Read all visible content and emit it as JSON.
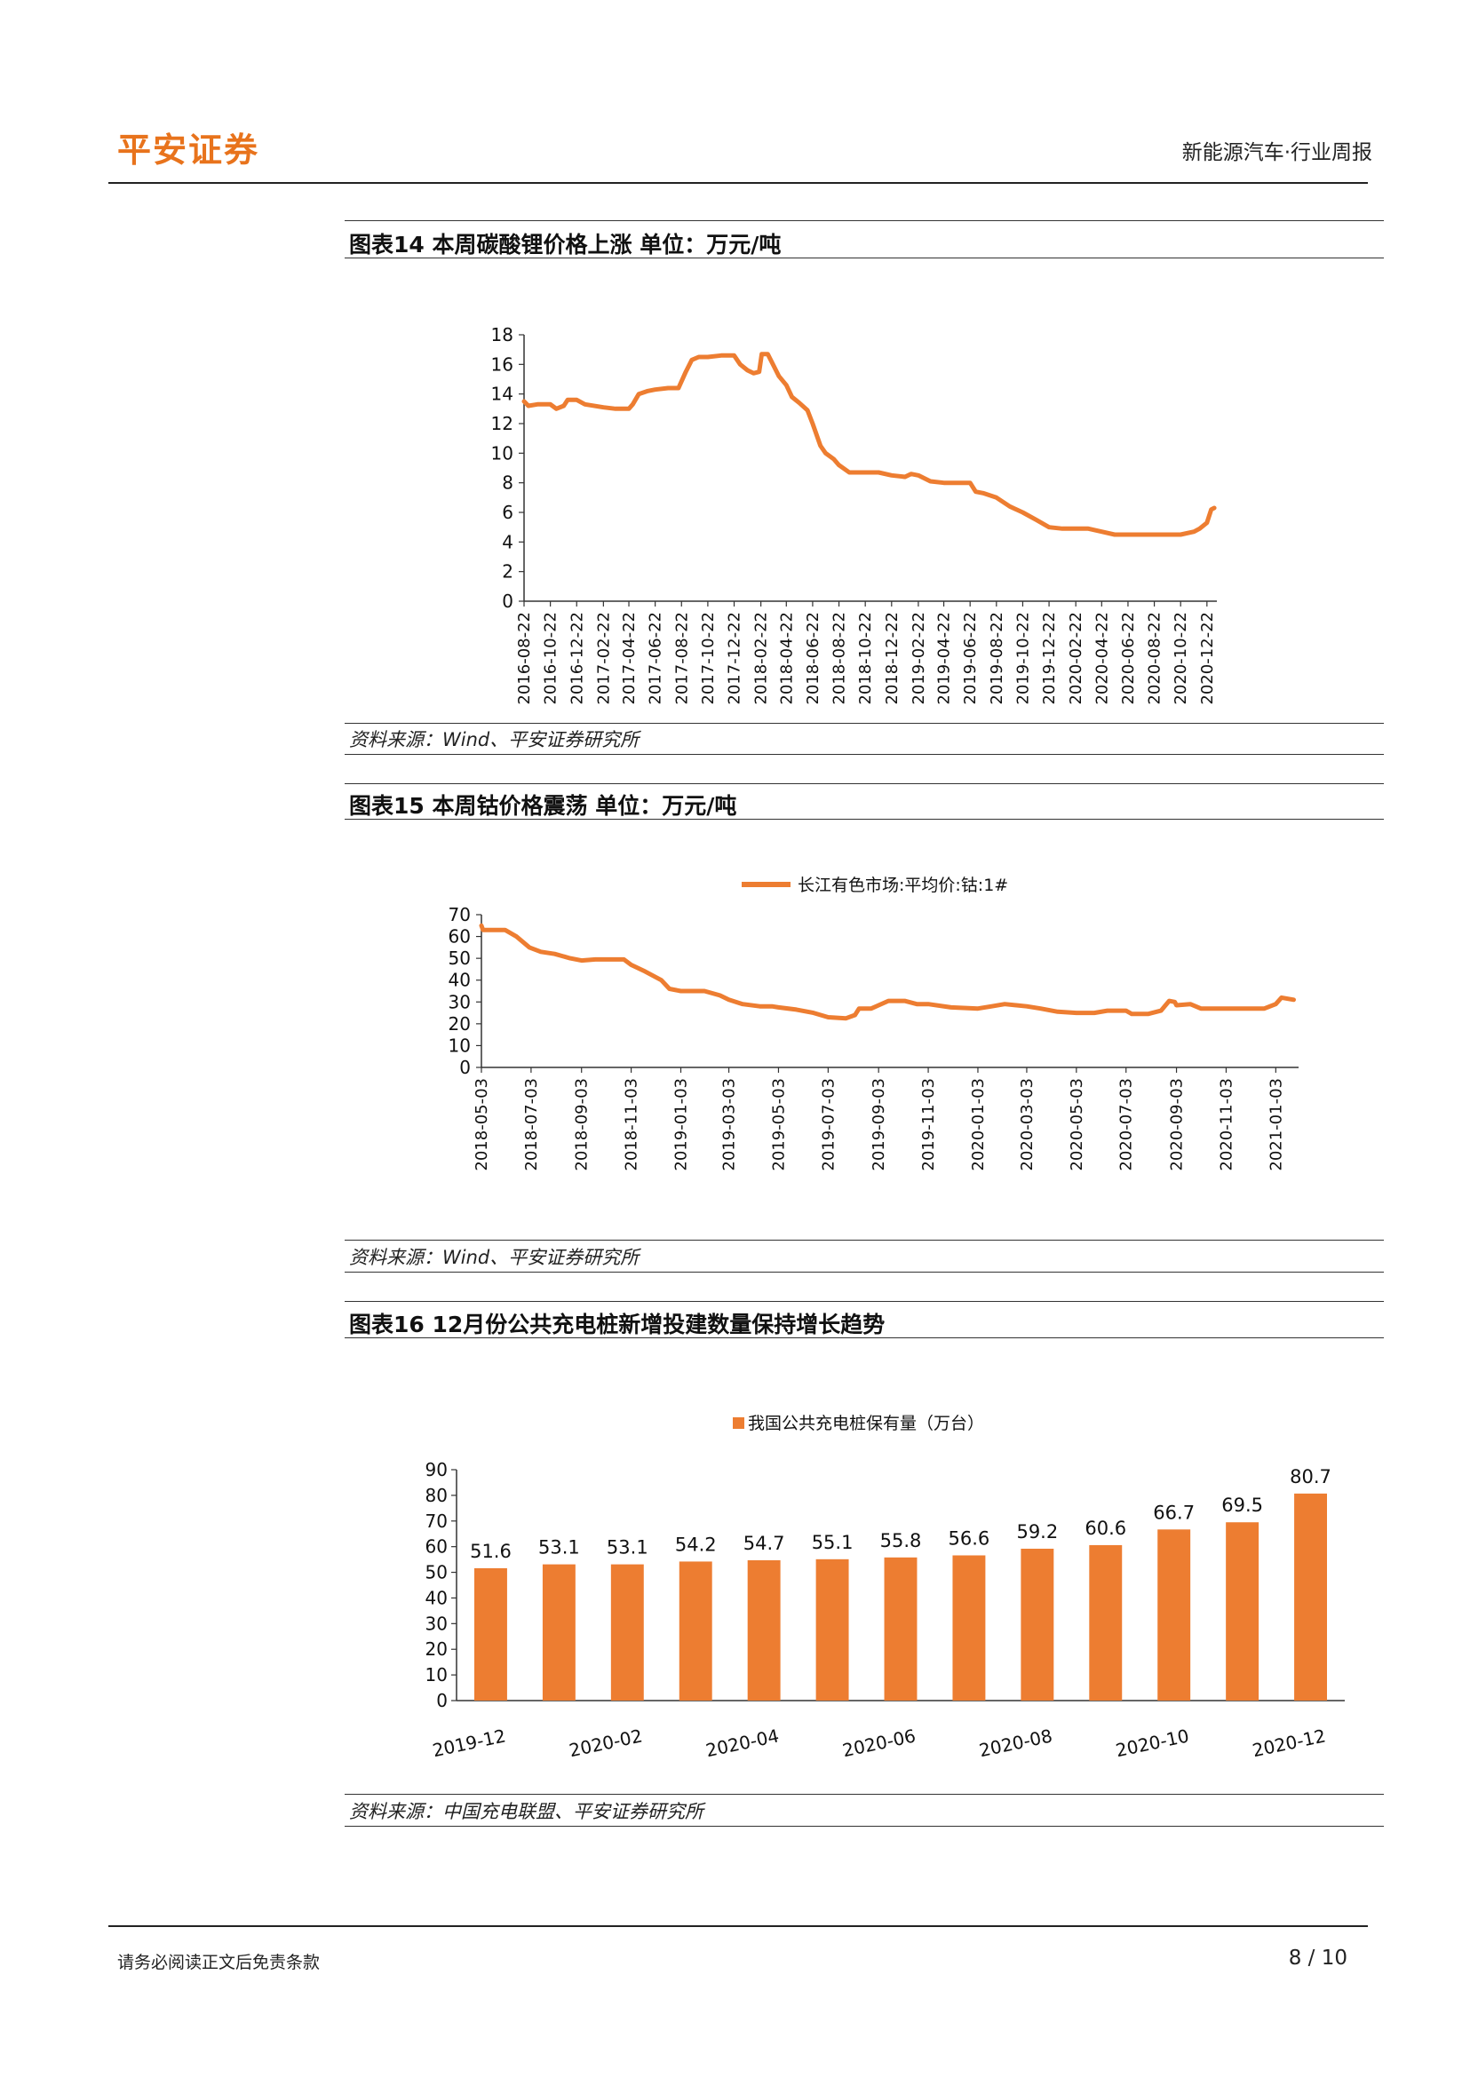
{
  "header": {
    "logo_text": "平安证券",
    "report_title": "新能源汽车·行业周报"
  },
  "figures": [
    {
      "title": "图表14   本周碳酸锂价格上涨   单位：万元/吨",
      "source": "资料来源：Wind、平安证券研究所"
    },
    {
      "title": "图表15   本周钴价格震荡   单位：万元/吨",
      "source": "资料来源：Wind、平安证券研究所"
    },
    {
      "title": "图表16   12月份公共充电桩新增投建数量保持增长趋势",
      "source": "资料来源：中国充电联盟、平安证券研究所"
    }
  ],
  "footer": {
    "disclaimer": "请务必阅读正文后免责条款",
    "page": "8 / 10"
  },
  "colors": {
    "accent": "#ed7d31",
    "logo": "#e8731c"
  },
  "chart_data": [
    {
      "type": "line",
      "title": "",
      "ylim": [
        0,
        18
      ],
      "yticks": [
        0,
        2,
        4,
        6,
        8,
        10,
        12,
        14,
        16,
        18
      ],
      "xtick_labels": [
        "2016-08-22",
        "2016-10-22",
        "2016-12-22",
        "2017-02-22",
        "2017-04-22",
        "2017-06-22",
        "2017-08-22",
        "2017-10-22",
        "2017-12-22",
        "2018-02-22",
        "2018-04-22",
        "2018-06-22",
        "2018-08-22",
        "2018-10-22",
        "2018-12-22",
        "2019-02-22",
        "2019-04-22",
        "2019-06-22",
        "2019-08-22",
        "2019-10-22",
        "2019-12-22",
        "2020-02-22",
        "2020-04-22",
        "2020-06-22",
        "2020-08-22",
        "2020-10-22",
        "2020-12-22"
      ],
      "legend": null,
      "series": [
        {
          "name": "",
          "points": [
            [
              "2016-08-22",
              13.5
            ],
            [
              "2016-09-01",
              13.2
            ],
            [
              "2016-09-22",
              13.3
            ],
            [
              "2016-10-22",
              13.3
            ],
            [
              "2016-11-05",
              13.0
            ],
            [
              "2016-11-22",
              13.2
            ],
            [
              "2016-12-01",
              13.6
            ],
            [
              "2016-12-22",
              13.6
            ],
            [
              "2017-01-10",
              13.3
            ],
            [
              "2017-02-22",
              13.1
            ],
            [
              "2017-03-22",
              13.0
            ],
            [
              "2017-04-22",
              13.0
            ],
            [
              "2017-05-01",
              13.3
            ],
            [
              "2017-05-15",
              14.0
            ],
            [
              "2017-06-05",
              14.2
            ],
            [
              "2017-06-22",
              14.3
            ],
            [
              "2017-07-22",
              14.4
            ],
            [
              "2017-08-15",
              14.4
            ],
            [
              "2017-09-01",
              15.5
            ],
            [
              "2017-09-15",
              16.3
            ],
            [
              "2017-10-01",
              16.5
            ],
            [
              "2017-10-22",
              16.5
            ],
            [
              "2017-11-22",
              16.6
            ],
            [
              "2017-12-22",
              16.6
            ],
            [
              "2018-01-05",
              16.0
            ],
            [
              "2018-01-22",
              15.6
            ],
            [
              "2018-02-05",
              15.4
            ],
            [
              "2018-02-18",
              15.5
            ],
            [
              "2018-02-24",
              16.7
            ],
            [
              "2018-03-10",
              16.7
            ],
            [
              "2018-03-22",
              16.0
            ],
            [
              "2018-04-05",
              15.2
            ],
            [
              "2018-04-22",
              14.6
            ],
            [
              "2018-05-05",
              13.8
            ],
            [
              "2018-05-22",
              13.4
            ],
            [
              "2018-06-10",
              12.9
            ],
            [
              "2018-06-22",
              12.0
            ],
            [
              "2018-07-10",
              10.5
            ],
            [
              "2018-07-22",
              10.0
            ],
            [
              "2018-08-10",
              9.6
            ],
            [
              "2018-08-22",
              9.2
            ],
            [
              "2018-09-15",
              8.7
            ],
            [
              "2018-10-22",
              8.7
            ],
            [
              "2018-11-22",
              8.7
            ],
            [
              "2018-12-22",
              8.5
            ],
            [
              "2019-01-22",
              8.4
            ],
            [
              "2019-02-05",
              8.6
            ],
            [
              "2019-02-22",
              8.5
            ],
            [
              "2019-03-22",
              8.1
            ],
            [
              "2019-04-22",
              8.0
            ],
            [
              "2019-05-22",
              8.0
            ],
            [
              "2019-06-22",
              8.0
            ],
            [
              "2019-07-05",
              7.4
            ],
            [
              "2019-07-22",
              7.3
            ],
            [
              "2019-08-22",
              7.0
            ],
            [
              "2019-09-22",
              6.4
            ],
            [
              "2019-10-22",
              6.0
            ],
            [
              "2019-11-22",
              5.5
            ],
            [
              "2019-12-22",
              5.0
            ],
            [
              "2020-01-22",
              4.9
            ],
            [
              "2020-02-22",
              4.9
            ],
            [
              "2020-03-22",
              4.9
            ],
            [
              "2020-04-22",
              4.7
            ],
            [
              "2020-05-22",
              4.5
            ],
            [
              "2020-06-22",
              4.5
            ],
            [
              "2020-07-22",
              4.5
            ],
            [
              "2020-08-22",
              4.5
            ],
            [
              "2020-09-22",
              4.5
            ],
            [
              "2020-10-22",
              4.5
            ],
            [
              "2020-11-22",
              4.7
            ],
            [
              "2020-12-05",
              4.9
            ],
            [
              "2020-12-22",
              5.3
            ],
            [
              "2021-01-01",
              6.2
            ],
            [
              "2021-01-08",
              6.3
            ]
          ]
        }
      ]
    },
    {
      "type": "line",
      "title": "",
      "ylim": [
        0,
        70
      ],
      "yticks": [
        0,
        10,
        20,
        30,
        40,
        50,
        60,
        70
      ],
      "xtick_labels": [
        "2018-05-03",
        "2018-07-03",
        "2018-09-03",
        "2018-11-03",
        "2019-01-03",
        "2019-03-03",
        "2019-05-03",
        "2019-07-03",
        "2019-09-03",
        "2019-11-03",
        "2020-01-03",
        "2020-03-03",
        "2020-05-03",
        "2020-07-03",
        "2020-09-03",
        "2020-11-03",
        "2021-01-03"
      ],
      "legend": "top",
      "series": [
        {
          "name": "长江有色市场:平均价:钴:1#",
          "points": [
            [
              "2018-05-03",
              65.0
            ],
            [
              "2018-05-05",
              63.0
            ],
            [
              "2018-06-01",
              63.0
            ],
            [
              "2018-06-15",
              60.0
            ],
            [
              "2018-07-01",
              55.0
            ],
            [
              "2018-07-15",
              53.0
            ],
            [
              "2018-08-01",
              52.0
            ],
            [
              "2018-08-20",
              50.0
            ],
            [
              "2018-09-03",
              49.0
            ],
            [
              "2018-09-20",
              49.5
            ],
            [
              "2018-10-10",
              49.5
            ],
            [
              "2018-10-25",
              49.5
            ],
            [
              "2018-11-03",
              47.0
            ],
            [
              "2018-11-20",
              44.0
            ],
            [
              "2018-12-10",
              40.0
            ],
            [
              "2018-12-20",
              36.0
            ],
            [
              "2019-01-03",
              35.0
            ],
            [
              "2019-02-01",
              35.0
            ],
            [
              "2019-02-20",
              33.0
            ],
            [
              "2019-03-03",
              31.0
            ],
            [
              "2019-03-20",
              29.0
            ],
            [
              "2019-04-10",
              28.0
            ],
            [
              "2019-04-25",
              28.0
            ],
            [
              "2019-05-03",
              27.5
            ],
            [
              "2019-05-25",
              26.5
            ],
            [
              "2019-06-15",
              25.0
            ],
            [
              "2019-07-03",
              23.0
            ],
            [
              "2019-07-25",
              22.5
            ],
            [
              "2019-08-05",
              24.0
            ],
            [
              "2019-08-10",
              27.0
            ],
            [
              "2019-08-25",
              27.0
            ],
            [
              "2019-09-03",
              28.5
            ],
            [
              "2019-09-15",
              30.5
            ],
            [
              "2019-10-05",
              30.5
            ],
            [
              "2019-10-20",
              29.0
            ],
            [
              "2019-11-03",
              29.0
            ],
            [
              "2019-12-01",
              27.5
            ],
            [
              "2020-01-03",
              27.0
            ],
            [
              "2020-01-20",
              28.0
            ],
            [
              "2020-02-05",
              29.0
            ],
            [
              "2020-03-03",
              28.0
            ],
            [
              "2020-03-20",
              27.0
            ],
            [
              "2020-04-10",
              25.5
            ],
            [
              "2020-05-03",
              25.0
            ],
            [
              "2020-05-25",
              25.0
            ],
            [
              "2020-06-10",
              26.0
            ],
            [
              "2020-07-03",
              26.0
            ],
            [
              "2020-07-10",
              24.5
            ],
            [
              "2020-07-30",
              24.5
            ],
            [
              "2020-08-15",
              26.0
            ],
            [
              "2020-08-25",
              30.5
            ],
            [
              "2020-09-01",
              30.0
            ],
            [
              "2020-09-03",
              28.5
            ],
            [
              "2020-09-20",
              29.0
            ],
            [
              "2020-10-03",
              27.0
            ],
            [
              "2020-11-03",
              27.0
            ],
            [
              "2020-12-03",
              27.0
            ],
            [
              "2020-12-20",
              27.0
            ],
            [
              "2021-01-03",
              29.0
            ],
            [
              "2021-01-10",
              32.0
            ],
            [
              "2021-01-25",
              31.0
            ]
          ]
        }
      ]
    },
    {
      "type": "bar",
      "title": "",
      "ylim": [
        0,
        90
      ],
      "yticks": [
        0,
        10,
        20,
        30,
        40,
        50,
        60,
        70,
        80,
        90
      ],
      "categories": [
        "2019-12",
        "2020-01",
        "2020-02",
        "2020-03",
        "2020-04",
        "2020-05",
        "2020-06",
        "2020-07",
        "2020-08",
        "2020-09",
        "2020-10",
        "2020-11",
        "2020-12"
      ],
      "xtick_labels": [
        "2019-12",
        "",
        "2020-02",
        "",
        "2020-04",
        "",
        "2020-06",
        "",
        "2020-08",
        "",
        "2020-10",
        "",
        "2020-12"
      ],
      "legend": "top",
      "series": [
        {
          "name": "我国公共充电桩保有量（万台）",
          "values": [
            51.6,
            53.1,
            53.1,
            54.2,
            54.7,
            55.1,
            55.8,
            56.6,
            59.2,
            60.6,
            66.7,
            69.5,
            80.7
          ]
        }
      ],
      "data_labels": [
        "51.6",
        "53.1",
        "53.1",
        "54.2",
        "54.7",
        "55.1",
        "55.8",
        "56.6",
        "59.2",
        "60.6",
        "66.7",
        "69.5",
        "80.7"
      ]
    }
  ]
}
